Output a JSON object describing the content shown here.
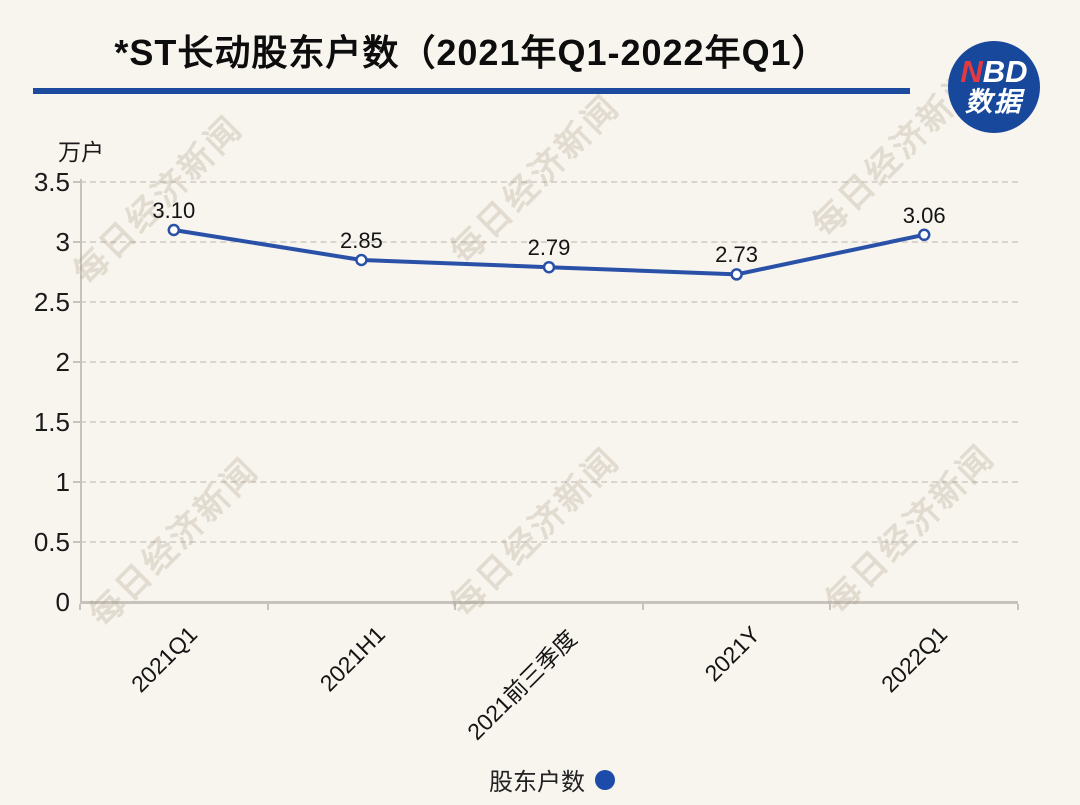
{
  "header": {
    "title": "*ST长动股东户数（2021年Q1-2022年Q1）",
    "logo": {
      "n": "N",
      "bd": "BD",
      "sub": "数据"
    }
  },
  "watermark": {
    "text": "每日经济新闻"
  },
  "colors": {
    "background": "#f8f4ee",
    "accent_blue": "#2a51a8",
    "divider_blue": "#1b4a9e",
    "logo_blue": "#17489c",
    "logo_red": "#e5383f",
    "marker_fill": "#ffffff",
    "gridline_gray": "#d9d5ce",
    "axis_gray": "#c7c3bc"
  },
  "chart_data": {
    "type": "line",
    "title": "*ST长动股东户数（2021年Q1-2022年Q1）",
    "unit_label": "万户",
    "categories": [
      "2021Q1",
      "2021H1",
      "2021前三季度",
      "2021Y",
      "2022Q1"
    ],
    "series": [
      {
        "name": "股东户数",
        "values": [
          3.1,
          2.85,
          2.79,
          2.73,
          3.06
        ]
      }
    ],
    "data_labels": [
      "3.10",
      "2.85",
      "2.79",
      "2.73",
      "3.06"
    ],
    "ylim": [
      0,
      3.5
    ],
    "ytick_interval": 0.5,
    "yticks": [
      "3.5",
      "3",
      "2.5",
      "2",
      "1.5",
      "1",
      "0.5",
      "0"
    ],
    "grid": "horizontal-dashed",
    "legend": {
      "label": "股东户数",
      "position": "bottom-center"
    }
  }
}
